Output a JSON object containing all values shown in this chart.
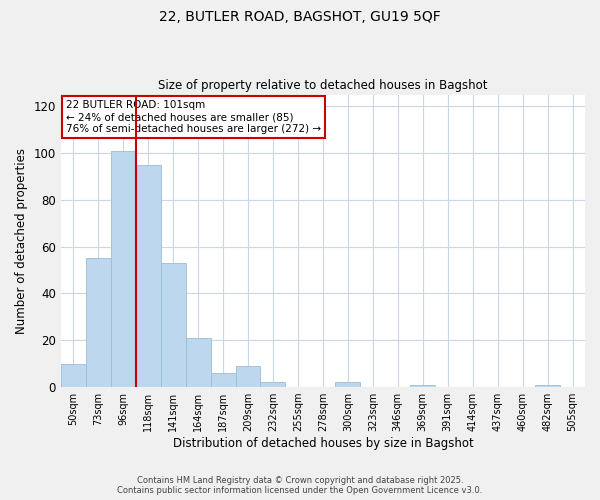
{
  "title_line1": "22, BUTLER ROAD, BAGSHOT, GU19 5QF",
  "title_line2": "Size of property relative to detached houses in Bagshot",
  "xlabel": "Distribution of detached houses by size in Bagshot",
  "ylabel": "Number of detached properties",
  "bar_labels": [
    "50sqm",
    "73sqm",
    "96sqm",
    "118sqm",
    "141sqm",
    "164sqm",
    "187sqm",
    "209sqm",
    "232sqm",
    "255sqm",
    "278sqm",
    "300sqm",
    "323sqm",
    "346sqm",
    "369sqm",
    "391sqm",
    "414sqm",
    "437sqm",
    "460sqm",
    "482sqm",
    "505sqm"
  ],
  "bar_values": [
    10,
    55,
    101,
    95,
    53,
    21,
    6,
    9,
    2,
    0,
    0,
    2,
    0,
    0,
    1,
    0,
    0,
    0,
    0,
    1,
    0
  ],
  "bar_color": "#bdd7ee",
  "bar_edge_color": "#9bbdd8",
  "vline_color": "#cc0000",
  "vline_x_index": 2.5,
  "annotation_title": "22 BUTLER ROAD: 101sqm",
  "annotation_line2": "← 24% of detached houses are smaller (85)",
  "annotation_line3": "76% of semi-detached houses are larger (272) →",
  "annotation_box_color": "#cc0000",
  "ylim": [
    0,
    125
  ],
  "yticks": [
    0,
    20,
    40,
    60,
    80,
    100,
    120
  ],
  "footer_line1": "Contains HM Land Registry data © Crown copyright and database right 2025.",
  "footer_line2": "Contains public sector information licensed under the Open Government Licence v3.0.",
  "bg_color": "#f0f0f0",
  "plot_bg_color": "#ffffff",
  "grid_color": "#c8d8ea"
}
